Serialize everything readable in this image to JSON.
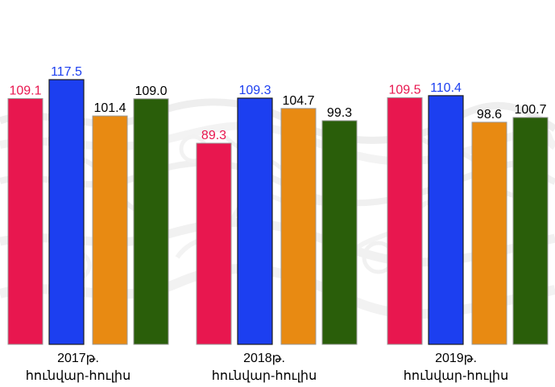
{
  "chart_data": {
    "type": "bar",
    "categories": [
      [
        "2017թ.",
        "հունվար-հուլիս"
      ],
      [
        "2018թ.",
        "հունվար-հուլիս"
      ],
      [
        "2019թ.",
        "հունվար-հուլիս"
      ]
    ],
    "series": [
      {
        "color": "#e8174f",
        "label_color": "#e8174f",
        "values": [
          109.1,
          89.3,
          109.5
        ],
        "labels": [
          "109.1",
          "89.3",
          "109.5"
        ]
      },
      {
        "color": "#1c3ff0",
        "label_color": "#1c3ff0",
        "values": [
          117.5,
          109.3,
          110.4
        ],
        "labels": [
          "117.5",
          "109.3",
          "110.4"
        ]
      },
      {
        "color": "#e88a12",
        "label_color": "#000000",
        "values": [
          101.4,
          104.7,
          98.6
        ],
        "labels": [
          "101.4",
          "104.7",
          "98.6"
        ]
      },
      {
        "color": "#2a5e0a",
        "label_color": "#000000",
        "values": [
          109.0,
          99.3,
          100.7
        ],
        "labels": [
          "109.0",
          "99.3",
          "100.7"
        ]
      }
    ],
    "title": "",
    "xlabel": "",
    "ylabel": "",
    "legend": "none",
    "grid": false,
    "background": "light watermark texture"
  }
}
